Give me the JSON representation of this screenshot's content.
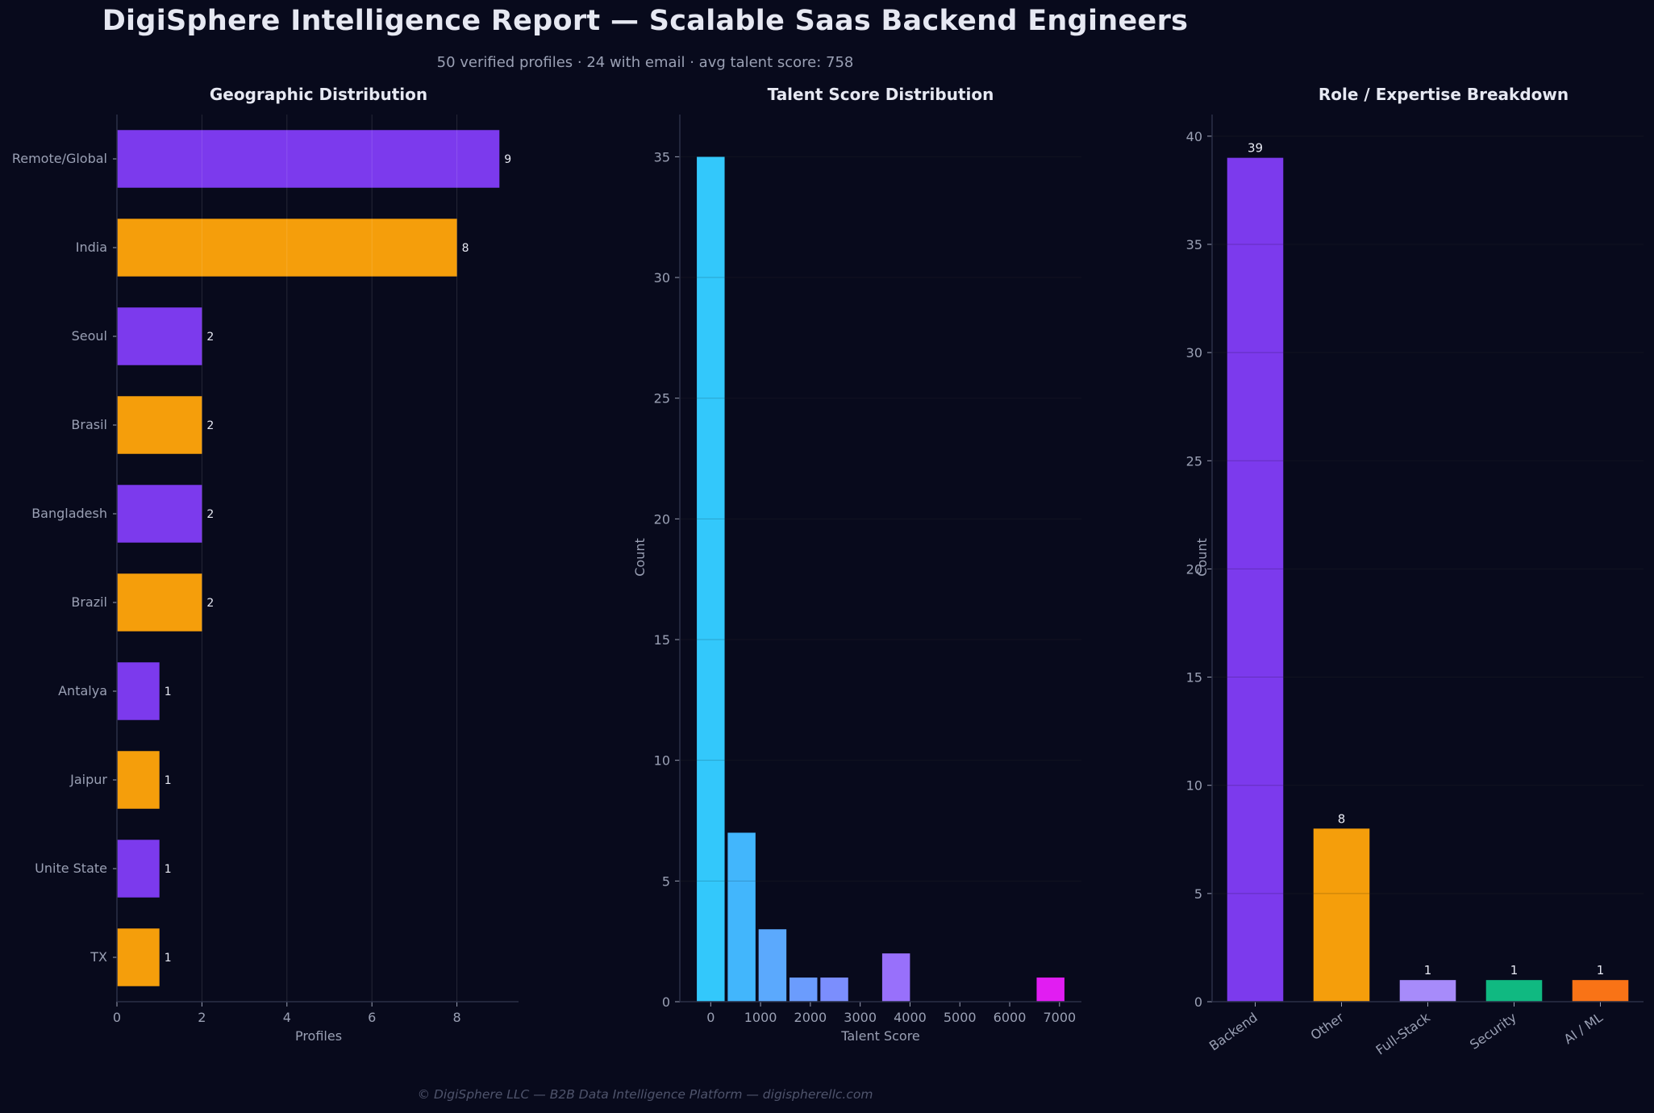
{
  "title": "DigiSphere Intelligence Report — Scalable Saas Backend Engineers",
  "subtitle": "50 verified profiles  ·  24 with email  ·  avg talent score: 758",
  "footer": "© DigiSphere LLC — B2B Data Intelligence Platform — digispherellc.com",
  "colors": {
    "background": "#080a1c",
    "purple": "#7c3aed",
    "amber": "#f59e0b",
    "axis_text": "#9aa0b4",
    "title_text": "#e6e8f2"
  },
  "chart_data": [
    {
      "type": "bar",
      "orientation": "horizontal",
      "title": "Geographic Distribution",
      "xlabel": "Profiles",
      "ylabel": "",
      "categories": [
        "Remote/Global",
        "India",
        "Seoul",
        "Brasil",
        "Bangladesh",
        "Brazil",
        "Antalya",
        "Jaipur",
        "Unite State",
        "TX"
      ],
      "values": [
        9,
        8,
        2,
        2,
        2,
        2,
        1,
        1,
        1,
        1
      ],
      "bar_colors": [
        "#7c3aed",
        "#f59e0b",
        "#7c3aed",
        "#f59e0b",
        "#7c3aed",
        "#f59e0b",
        "#7c3aed",
        "#f59e0b",
        "#7c3aed",
        "#f59e0b"
      ],
      "xlim": [
        0,
        9.45
      ],
      "xticks": [
        0,
        2,
        4,
        6,
        8
      ],
      "data_labels": true,
      "grid": true
    },
    {
      "type": "bar",
      "title": "Talent Score Distribution",
      "xlabel": "Talent Score",
      "ylabel": "Count",
      "bins": [
        {
          "x": 0,
          "value": 35,
          "color": "#33c8fb"
        },
        {
          "x": 620,
          "value": 7,
          "color": "#42b6fc"
        },
        {
          "x": 1240,
          "value": 3,
          "color": "#5ba9fd"
        },
        {
          "x": 1860,
          "value": 1,
          "color": "#6b9cfd"
        },
        {
          "x": 2480,
          "value": 1,
          "color": "#7b8efd"
        },
        {
          "x": 3100,
          "value": 0,
          "color": "#8a7ffc"
        },
        {
          "x": 3720,
          "value": 2,
          "color": "#9870fb"
        },
        {
          "x": 4340,
          "value": 0,
          "color": "#a663f9"
        },
        {
          "x": 4960,
          "value": 0,
          "color": "#b355f7"
        },
        {
          "x": 5580,
          "value": 0,
          "color": "#c24af5"
        },
        {
          "x": 6200,
          "value": 0,
          "color": "#d03ef3"
        },
        {
          "x": 6820,
          "value": 1,
          "color": "#e11df2"
        }
      ],
      "bin_width": 558,
      "xlim": [
        -620,
        7440
      ],
      "ylim": [
        0,
        36.75
      ],
      "xticks": [
        0,
        1000,
        2000,
        3000,
        4000,
        5000,
        6000,
        7000
      ],
      "yticks": [
        0,
        5,
        10,
        15,
        20,
        25,
        30,
        35
      ],
      "grid": true
    },
    {
      "type": "bar",
      "title": "Role / Expertise Breakdown",
      "xlabel": "",
      "ylabel": "Count",
      "categories": [
        "Backend",
        "Other",
        "Full-Stack",
        "Security",
        "AI / ML"
      ],
      "values": [
        39,
        8,
        1,
        1,
        1
      ],
      "bar_colors": [
        "#7c3aed",
        "#f59e0b",
        "#a78bfa",
        "#10b981",
        "#f97316"
      ],
      "ylim": [
        0,
        41
      ],
      "yticks": [
        0,
        5,
        10,
        15,
        20,
        25,
        30,
        35,
        40
      ],
      "data_labels": true,
      "grid": true
    }
  ]
}
